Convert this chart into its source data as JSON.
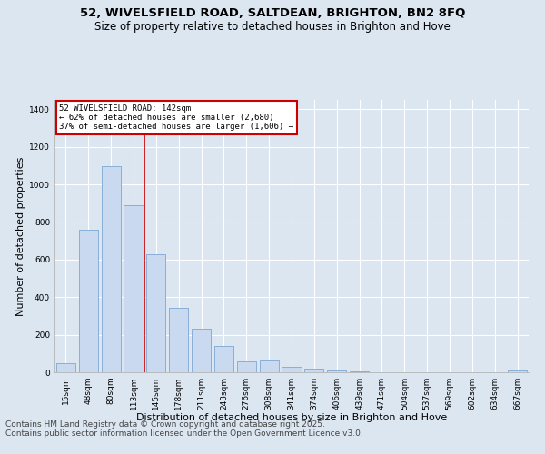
{
  "title_line1": "52, WIVELSFIELD ROAD, SALTDEAN, BRIGHTON, BN2 8FQ",
  "title_line2": "Size of property relative to detached houses in Brighton and Hove",
  "xlabel": "Distribution of detached houses by size in Brighton and Hove",
  "ylabel": "Number of detached properties",
  "bar_values": [
    50,
    760,
    1095,
    890,
    630,
    345,
    230,
    140,
    60,
    62,
    30,
    20,
    10,
    5,
    2,
    1,
    0,
    0,
    0,
    0,
    12
  ],
  "bar_labels": [
    "15sqm",
    "48sqm",
    "80sqm",
    "113sqm",
    "145sqm",
    "178sqm",
    "211sqm",
    "243sqm",
    "276sqm",
    "308sqm",
    "341sqm",
    "374sqm",
    "406sqm",
    "439sqm",
    "471sqm",
    "504sqm",
    "537sqm",
    "569sqm",
    "602sqm",
    "634sqm",
    "667sqm"
  ],
  "bar_color": "#c9d9ef",
  "bar_edge_color": "#7ca6d4",
  "annotation_title": "52 WIVELSFIELD ROAD: 142sqm",
  "annotation_line1": "← 62% of detached houses are smaller (2,680)",
  "annotation_line2": "37% of semi-detached houses are larger (1,606) →",
  "annotation_box_color": "#ffffff",
  "annotation_box_edge": "#cc0000",
  "vline_color": "#cc0000",
  "vline_x": 4.0,
  "ylim": [
    0,
    1450
  ],
  "yticks": [
    0,
    200,
    400,
    600,
    800,
    1000,
    1200,
    1400
  ],
  "footer_line1": "Contains HM Land Registry data © Crown copyright and database right 2025.",
  "footer_line2": "Contains public sector information licensed under the Open Government Licence v3.0.",
  "bg_color": "#dce6f1",
  "plot_bg_color": "#dce6f1",
  "grid_color": "#ffffff",
  "title_fontsize": 9.5,
  "subtitle_fontsize": 8.5,
  "axis_label_fontsize": 8,
  "tick_fontsize": 6.5,
  "footer_fontsize": 6.5
}
